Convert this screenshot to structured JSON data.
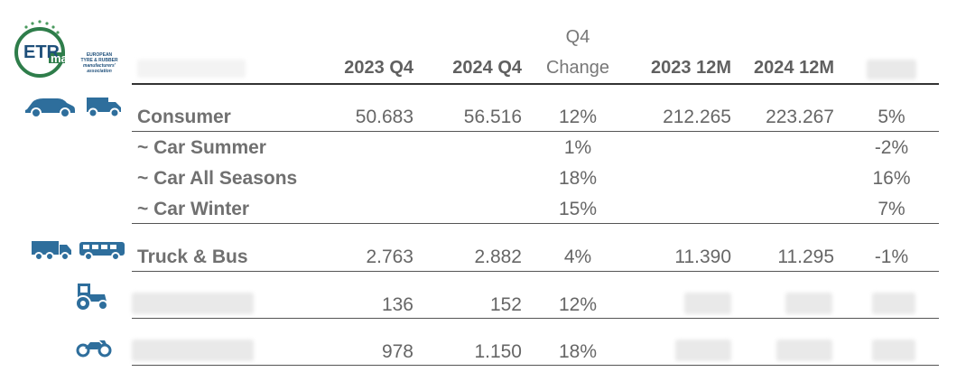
{
  "logo": {
    "abbr_top": "ETR",
    "abbr_bottom": "ma",
    "name_lines": [
      "EUROPEAN",
      "TYRE & RUBBER",
      "manufacturers'",
      "association"
    ]
  },
  "headers": {
    "q4_top": "Q4",
    "col1": "2023 Q4",
    "col2": "2024 Q4",
    "col3": "Change",
    "col4": "2023 12M",
    "col5": "2024 12M"
  },
  "rows": [
    {
      "label": "Consumer",
      "c1": "50.683",
      "c2": "56.516",
      "c3": "12%",
      "c4": "212.265",
      "c5": "223.267",
      "c6": "5%"
    },
    {
      "label": "~ Car Summer",
      "c3": "1%",
      "c6": "-2%"
    },
    {
      "label": "~ Car All Seasons",
      "c3": "18%",
      "c6": "16%"
    },
    {
      "label": "~ Car Winter",
      "c3": "15%",
      "c6": "7%"
    },
    {
      "label": "Truck & Bus",
      "c1": "2.763",
      "c2": "2.882",
      "c3": "4%",
      "c4": "11.390",
      "c5": "11.295",
      "c6": "-1%"
    },
    {
      "c1": "136",
      "c2": "152",
      "c3": "12%"
    },
    {
      "c1": "978",
      "c2": "1.150",
      "c3": "18%"
    }
  ],
  "icons": [
    "car-icon",
    "van-icon",
    "truck-icon",
    "bus-icon",
    "tractor-icon",
    "motorcycle-icon"
  ]
}
